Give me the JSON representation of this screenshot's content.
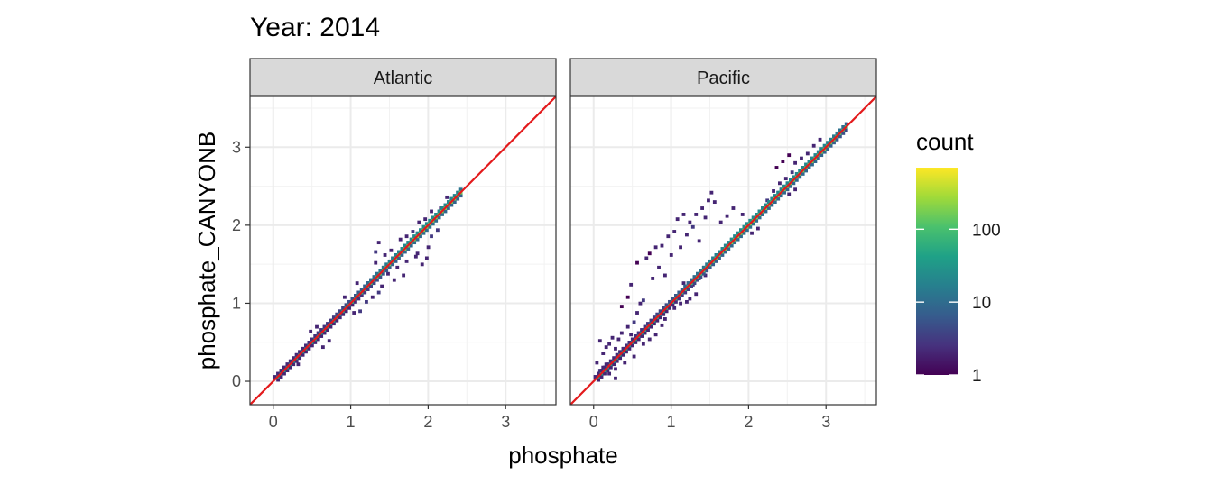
{
  "chart_data": {
    "type": "heatmap",
    "title": "Year: 2014",
    "xlabel": "phosphate",
    "ylabel": "phosphate_CANYONB",
    "xlim": [
      -0.3,
      3.65
    ],
    "ylim": [
      -0.3,
      3.65
    ],
    "xticks": [
      0,
      1,
      2,
      3
    ],
    "yticks": [
      0,
      1,
      2,
      3
    ],
    "grid": true,
    "reference_line": {
      "intercept": 0,
      "slope": 1,
      "color": "#e31a1c"
    },
    "legend": {
      "title": "count",
      "scale": "log",
      "breaks": [
        1,
        10,
        100
      ],
      "break_labels": [
        "1",
        "10",
        "100"
      ],
      "range": [
        1,
        700
      ],
      "colors": [
        "#440154",
        "#46327e",
        "#365c8d",
        "#277f8e",
        "#1fa187",
        "#4ac16d",
        "#a0da39",
        "#fde725"
      ],
      "position": "right"
    },
    "panels": [
      {
        "label": "Atlantic",
        "bin_width": 0.04,
        "ridge": {
          "x_start": 0.04,
          "x_end": 2.4,
          "steps": 60
        },
        "cells": [
          [
            1.3,
            1.64,
            3
          ],
          [
            1.34,
            1.76,
            2
          ],
          [
            1.3,
            1.5,
            2
          ],
          [
            1.42,
            1.6,
            2
          ],
          [
            1.22,
            1.24,
            4
          ],
          [
            1.38,
            1.2,
            2
          ],
          [
            1.34,
            1.12,
            3
          ],
          [
            1.46,
            1.36,
            2
          ],
          [
            1.5,
            1.66,
            2
          ],
          [
            1.62,
            1.8,
            2
          ],
          [
            1.7,
            1.84,
            2
          ],
          [
            1.78,
            1.9,
            3
          ],
          [
            1.86,
            2.02,
            2
          ],
          [
            1.94,
            2.06,
            2
          ],
          [
            1.84,
            1.62,
            2
          ],
          [
            1.9,
            1.48,
            2
          ],
          [
            1.98,
            1.7,
            2
          ],
          [
            1.82,
            1.58,
            2
          ],
          [
            1.7,
            1.52,
            2
          ],
          [
            1.58,
            1.44,
            2
          ],
          [
            1.96,
            1.56,
            2
          ],
          [
            2.02,
            1.84,
            3
          ],
          [
            2.1,
            1.92,
            3
          ],
          [
            2.14,
            2.2,
            2
          ],
          [
            2.22,
            2.34,
            2
          ],
          [
            2.02,
            2.16,
            2
          ],
          [
            1.66,
            1.34,
            2
          ],
          [
            1.54,
            1.28,
            2
          ],
          [
            1.18,
            1.0,
            3
          ],
          [
            1.1,
            0.88,
            3
          ],
          [
            1.02,
            0.86,
            2
          ],
          [
            0.62,
            0.42,
            2
          ],
          [
            0.7,
            0.5,
            2
          ],
          [
            0.46,
            0.62,
            2
          ],
          [
            0.54,
            0.68,
            2
          ],
          [
            0.3,
            0.2,
            2
          ],
          [
            0.74,
            0.76,
            2
          ],
          [
            1.06,
            1.24,
            2
          ],
          [
            0.9,
            1.06,
            2
          ],
          [
            1.26,
            1.06,
            2
          ]
        ]
      },
      {
        "label": "Pacific",
        "bin_width": 0.04,
        "ridge": {
          "x_start": 0.02,
          "x_end": 3.24,
          "steps": 82
        },
        "cells": [
          [
            0.06,
            0.5,
            2
          ],
          [
            0.1,
            0.34,
            2
          ],
          [
            0.14,
            0.42,
            2
          ],
          [
            0.18,
            0.46,
            2
          ],
          [
            0.1,
            0.16,
            2
          ],
          [
            0.14,
            0.2,
            2
          ],
          [
            0.22,
            0.54,
            2
          ],
          [
            0.26,
            0.4,
            2
          ],
          [
            0.3,
            0.52,
            2
          ],
          [
            0.34,
            0.6,
            2
          ],
          [
            0.38,
            0.4,
            2
          ],
          [
            0.3,
            0.3,
            2
          ],
          [
            0.42,
            0.68,
            2
          ],
          [
            0.46,
            0.58,
            2
          ],
          [
            0.5,
            0.74,
            3
          ],
          [
            0.54,
            0.86,
            2
          ],
          [
            0.34,
            0.94,
            1
          ],
          [
            0.42,
            1.06,
            1
          ],
          [
            0.46,
            1.22,
            2
          ],
          [
            0.58,
            0.98,
            2
          ],
          [
            0.62,
            1.02,
            3
          ],
          [
            0.54,
            1.5,
            1
          ],
          [
            0.66,
            1.56,
            2
          ],
          [
            0.7,
            1.62,
            1
          ],
          [
            0.78,
            1.7,
            2
          ],
          [
            0.86,
            1.72,
            2
          ],
          [
            0.94,
            1.84,
            2
          ],
          [
            1.02,
            1.9,
            2
          ],
          [
            1.06,
            2.06,
            2
          ],
          [
            1.14,
            2.12,
            2
          ],
          [
            1.3,
            2.12,
            2
          ],
          [
            1.38,
            2.2,
            2
          ],
          [
            1.46,
            2.3,
            2
          ],
          [
            1.5,
            2.4,
            2
          ],
          [
            1.54,
            2.28,
            2
          ],
          [
            0.82,
            1.44,
            2
          ],
          [
            0.98,
            1.6,
            2
          ],
          [
            1.1,
            1.7,
            2
          ],
          [
            1.18,
            1.86,
            2
          ],
          [
            1.26,
            1.96,
            3
          ],
          [
            1.22,
            2.02,
            2
          ],
          [
            1.42,
            2.08,
            2
          ],
          [
            0.74,
            1.3,
            2
          ],
          [
            0.9,
            1.34,
            2
          ],
          [
            1.34,
            1.78,
            2
          ],
          [
            1.62,
            2.02,
            2
          ],
          [
            1.7,
            2.1,
            2
          ],
          [
            1.78,
            2.2,
            2
          ],
          [
            0.62,
            0.46,
            2
          ],
          [
            0.7,
            0.52,
            2
          ],
          [
            0.78,
            0.58,
            2
          ],
          [
            0.86,
            0.7,
            2
          ],
          [
            0.9,
            0.78,
            2
          ],
          [
            0.5,
            0.3,
            2
          ],
          [
            0.38,
            0.22,
            2
          ],
          [
            0.26,
            0.14,
            2
          ],
          [
            1.02,
            0.92,
            2
          ],
          [
            1.1,
            0.98,
            2
          ],
          [
            1.18,
            1.0,
            2
          ],
          [
            1.22,
            1.04,
            2
          ],
          [
            1.14,
            1.24,
            2
          ],
          [
            1.26,
            1.22,
            2
          ],
          [
            1.3,
            1.1,
            2
          ],
          [
            1.34,
            1.3,
            2
          ],
          [
            1.42,
            1.34,
            2
          ],
          [
            2.18,
            2.16,
            2
          ],
          [
            2.22,
            2.3,
            3
          ],
          [
            2.3,
            2.42,
            2
          ],
          [
            2.38,
            2.52,
            2
          ],
          [
            2.46,
            2.58,
            2
          ],
          [
            2.54,
            2.66,
            3
          ],
          [
            2.58,
            2.78,
            2
          ],
          [
            2.66,
            2.84,
            2
          ],
          [
            2.74,
            2.9,
            2
          ],
          [
            2.82,
            3.0,
            2
          ],
          [
            2.9,
            3.08,
            2
          ],
          [
            2.34,
            2.72,
            1
          ],
          [
            2.42,
            2.8,
            1
          ],
          [
            2.5,
            2.88,
            1
          ],
          [
            2.02,
            1.88,
            2
          ],
          [
            2.1,
            1.94,
            2
          ],
          [
            2.5,
            2.38,
            2
          ],
          [
            2.58,
            2.44,
            2
          ],
          [
            1.9,
            2.12,
            2
          ],
          [
            0.02,
            0.22,
            2
          ],
          [
            0.06,
            0.12,
            3
          ],
          [
            0.18,
            0.08,
            2
          ],
          [
            0.26,
            0.02,
            2
          ]
        ]
      }
    ]
  }
}
